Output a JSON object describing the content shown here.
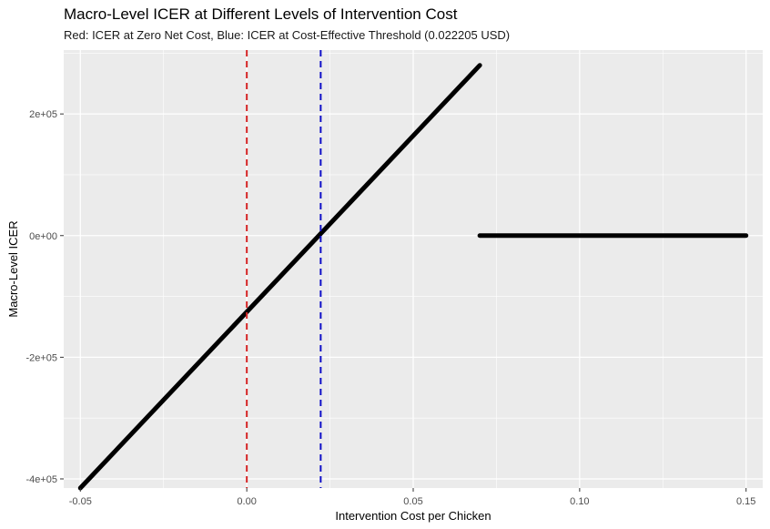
{
  "chart_data": {
    "type": "scatter",
    "title": "Macro-Level ICER at Different Levels of Intervention Cost",
    "subtitle": "Red: ICER at Zero Net Cost, Blue: ICER at Cost-Effective Threshold (0.022205 USD)",
    "xlabel": "Intervention Cost per Chicken",
    "ylabel": "Macro-Level ICER",
    "xlim": [
      -0.055,
      0.155
    ],
    "ylim": [
      -415000,
      305000
    ],
    "x_ticks": [
      -0.05,
      0.0,
      0.05,
      0.1,
      0.15
    ],
    "x_tick_labels": [
      "-0.05",
      "0.00",
      "0.05",
      "0.10",
      "0.15"
    ],
    "y_ticks": [
      -400000,
      -200000,
      0,
      200000
    ],
    "y_tick_labels": [
      "-4e+05",
      "-2e+05",
      "0e+00",
      "2e+05"
    ],
    "grid": true,
    "series": [
      {
        "type": "line",
        "color": "#000000",
        "x": [
          -0.05,
          0.07
        ],
        "y": [
          -415000,
          280000
        ]
      },
      {
        "type": "line",
        "color": "#000000",
        "x": [
          0.07,
          0.15
        ],
        "y": [
          0,
          0
        ]
      }
    ],
    "vlines": [
      {
        "x": 0.0,
        "color": "#d62728",
        "style": "dashed"
      },
      {
        "x": 0.022205,
        "color": "#1010c8",
        "style": "dashed"
      }
    ],
    "panel_bg": "#ebebeb",
    "grid_color": "#ffffff"
  }
}
